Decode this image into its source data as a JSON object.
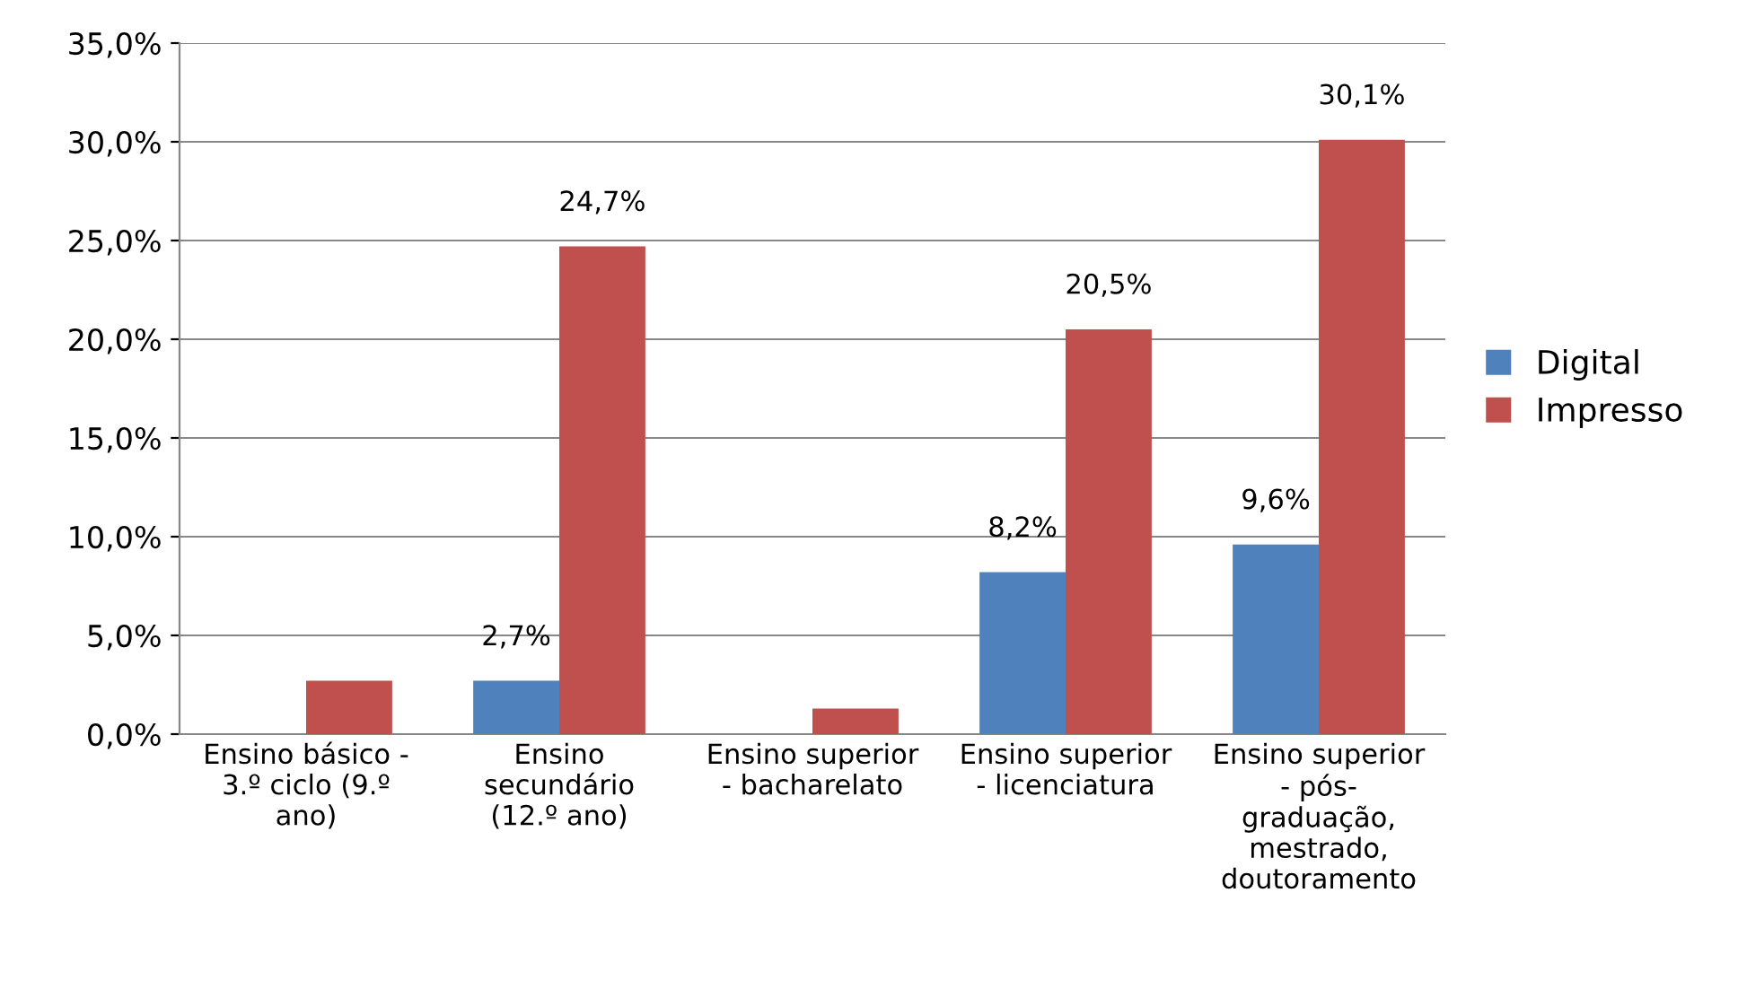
{
  "chart_data": {
    "type": "bar",
    "categories": [
      "Ensino básico -\n3.º ciclo (9.º\nano)",
      "Ensino\nsecundário\n(12.º ano)",
      "Ensino superior\n- bacharelato",
      "Ensino superior\n- licenciatura",
      "Ensino superior\n- pós-\ngraduação,\nmestrado,\ndoutoramento"
    ],
    "series": [
      {
        "name": "Digital",
        "color": "#4f81bd",
        "values": [
          null,
          2.7,
          null,
          8.2,
          9.6
        ],
        "value_labels": [
          null,
          "2,7%",
          null,
          "8,2%",
          "9,6%"
        ]
      },
      {
        "name": "Impresso",
        "color": "#c0504d",
        "values": [
          2.7,
          24.7,
          1.3,
          20.5,
          30.1
        ],
        "value_labels": [
          null,
          "24,7%",
          null,
          "20,5%",
          "30,1%"
        ]
      }
    ],
    "ylim": [
      0,
      35
    ],
    "yticks": [
      {
        "value": 0,
        "label": "0,0%"
      },
      {
        "value": 5,
        "label": "5,0%"
      },
      {
        "value": 10,
        "label": "10,0%"
      },
      {
        "value": 15,
        "label": "15,0%"
      },
      {
        "value": 20,
        "label": "20,0%"
      },
      {
        "value": 25,
        "label": "25,0%"
      },
      {
        "value": 30,
        "label": "30,0%"
      },
      {
        "value": 35,
        "label": "35,0%"
      }
    ],
    "grid": "y",
    "legend": "right"
  }
}
